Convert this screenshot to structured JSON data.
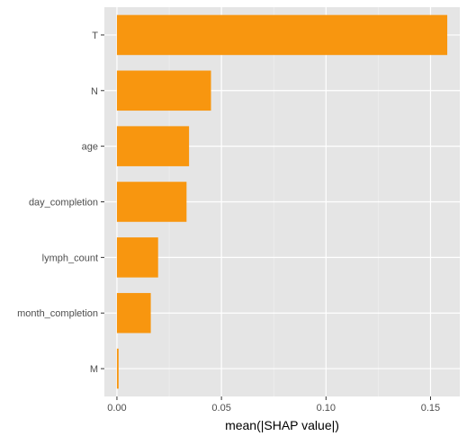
{
  "chart_data": {
    "type": "bar",
    "orientation": "horizontal",
    "categories": [
      "T",
      "N",
      "age",
      "day_completion",
      "lymph_count",
      "month_completion",
      "M"
    ],
    "values": [
      0.158,
      0.045,
      0.0345,
      0.0333,
      0.0197,
      0.0162,
      0.0008
    ],
    "xlabel": "mean(|SHAP value|)",
    "ylabel": "",
    "title": "",
    "xlim": [
      -0.006,
      0.164
    ],
    "xticks": [
      0.0,
      0.05,
      0.1,
      0.15
    ],
    "xtick_labels": [
      "0.00",
      "0.05",
      "0.10",
      "0.15"
    ],
    "grid": true,
    "colors": {
      "bar": "#f8960f",
      "panel": "#e5e5e5",
      "grid_major": "#ffffff",
      "grid_minor": "#f2f2f2",
      "tick": "#333333"
    }
  }
}
